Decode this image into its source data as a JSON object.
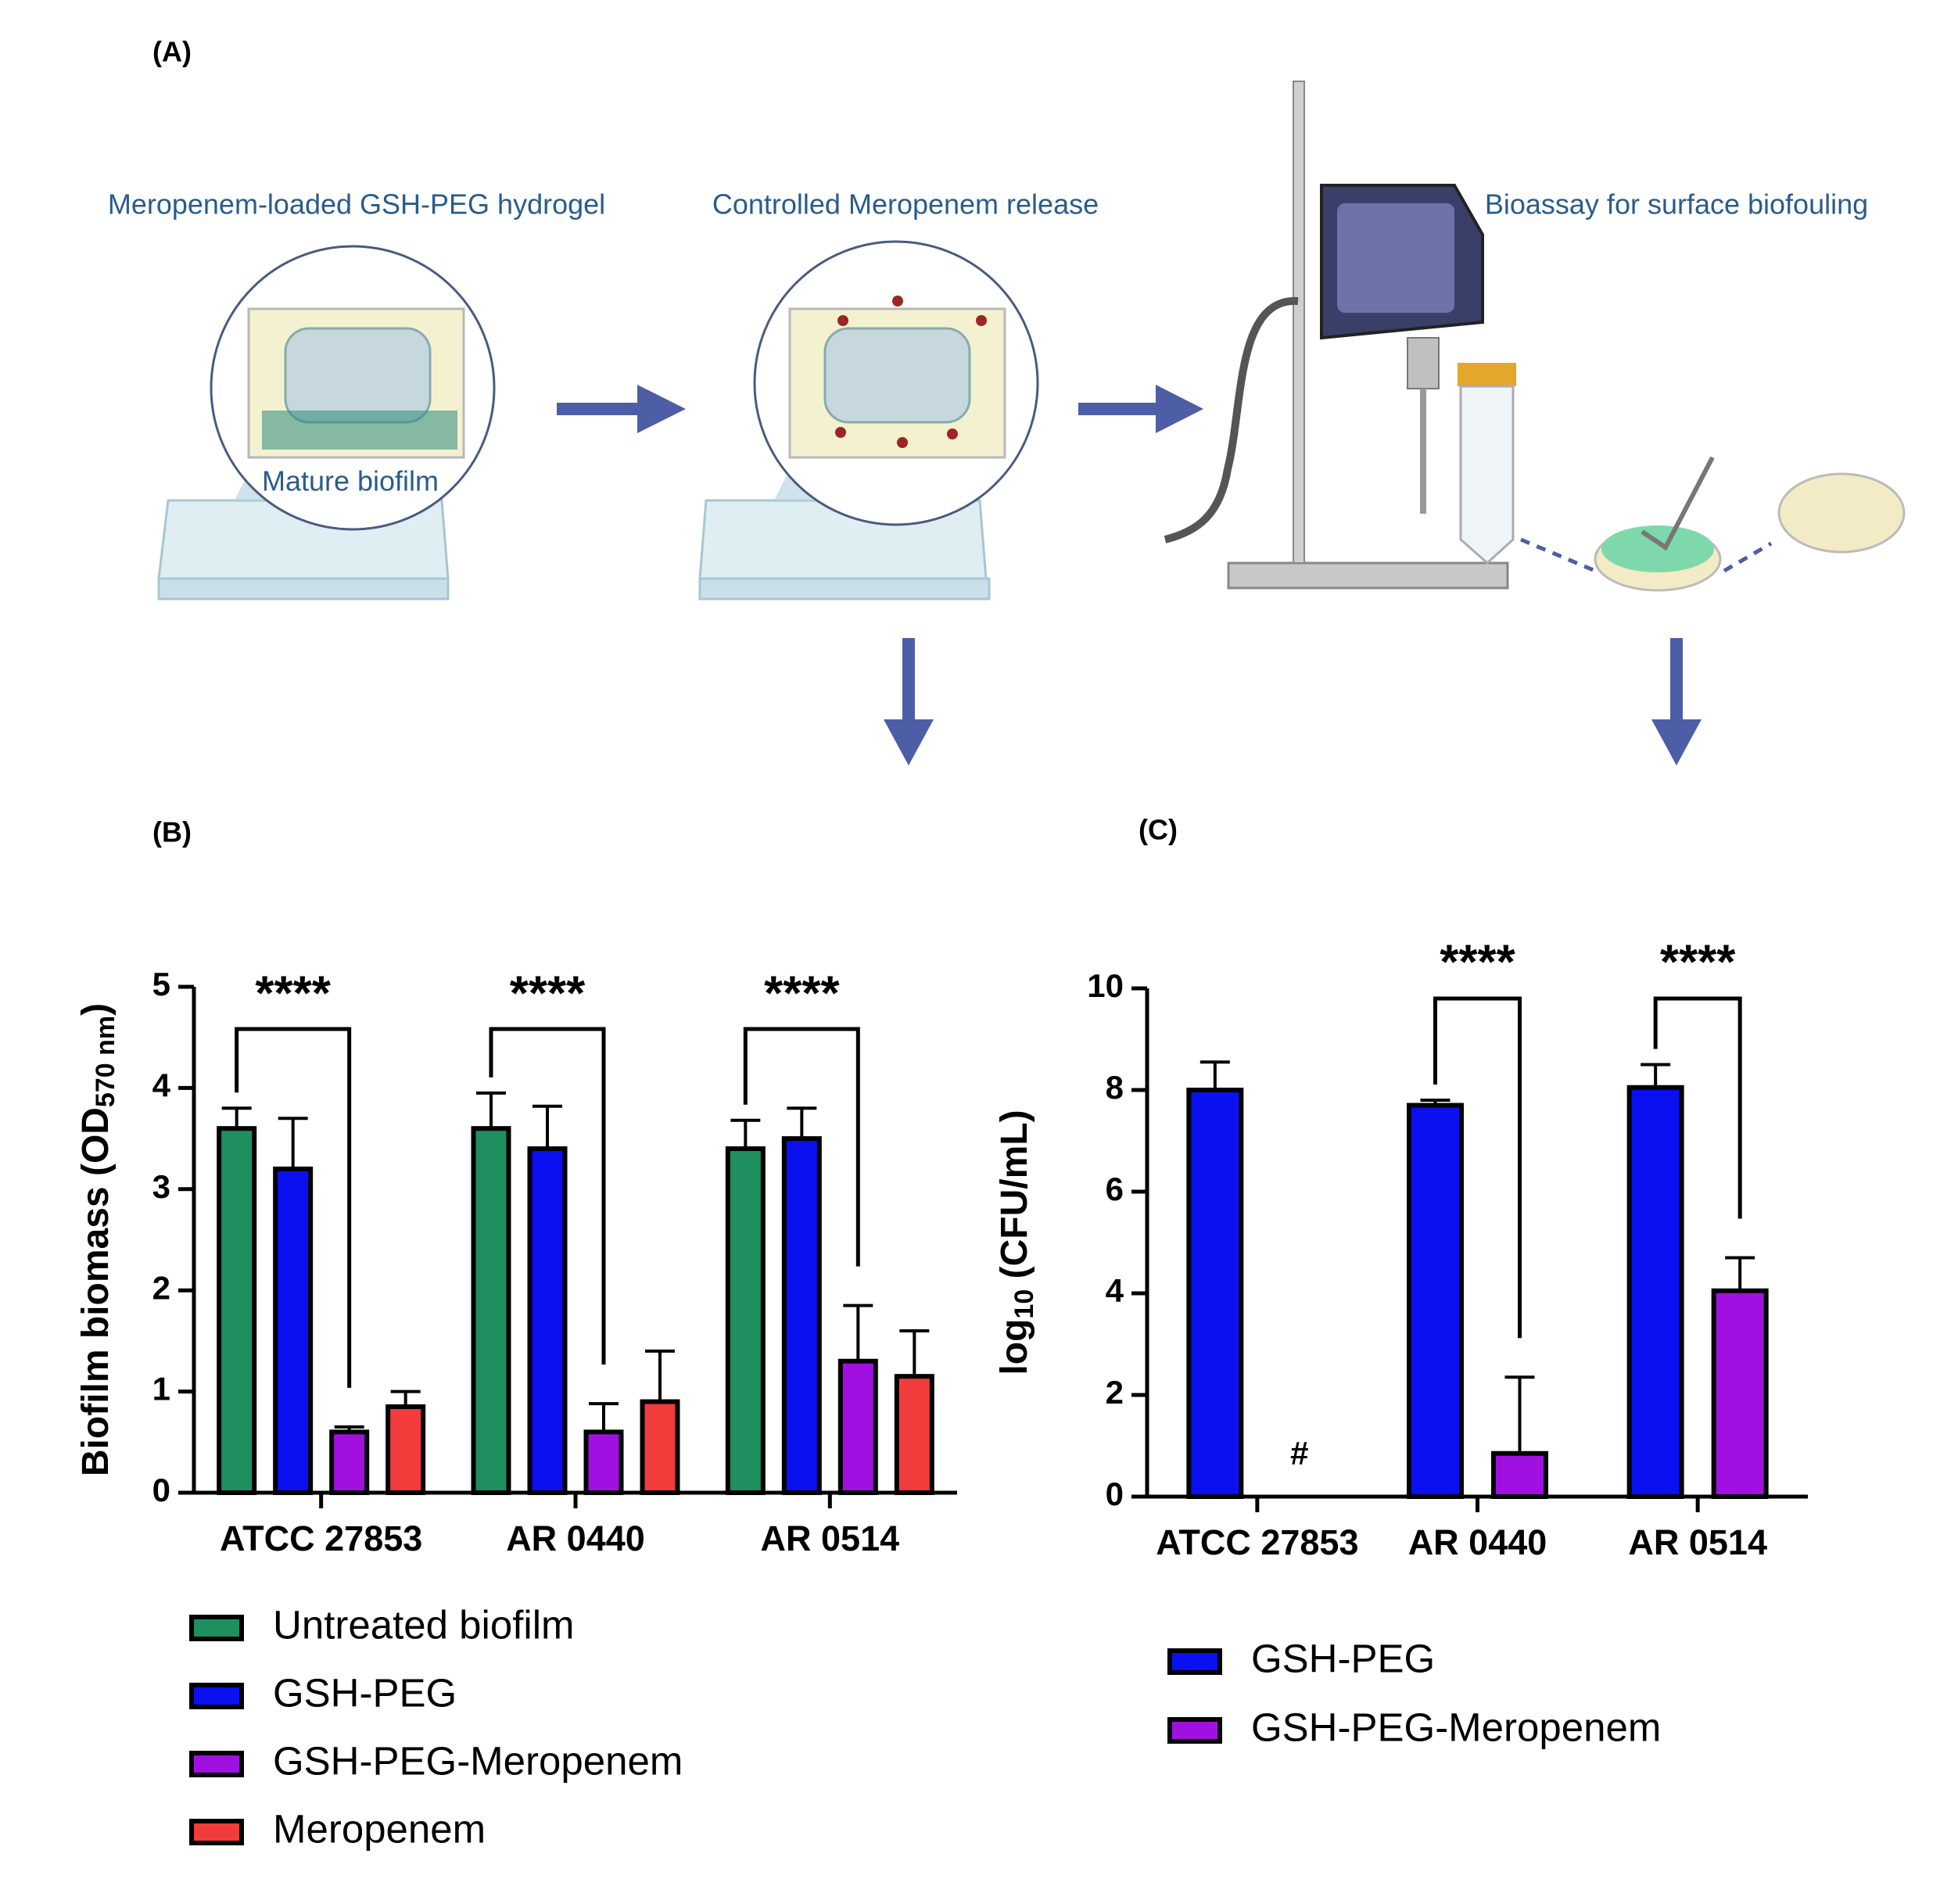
{
  "panel_a": {
    "label": "(A)",
    "steps": [
      "Meropenem-loaded GSH-PEG hydrogel",
      "Controlled Meropenem release",
      "Bioassay for surface biofouling"
    ],
    "inset_label": "Mature biofilm"
  },
  "chart_data": [
    {
      "type": "bar",
      "label": "(B)",
      "y_label": {
        "main": "Biofilm biomass (OD",
        "sub": "570 nm",
        "end": ")"
      },
      "categories": [
        "ATCC 27853",
        "AR 0440",
        "AR 0514"
      ],
      "series": [
        {
          "name": "Untreated biofilm",
          "color": "#1f8f5f",
          "values": [
            3.6,
            3.6,
            3.4
          ],
          "errors": [
            0.2,
            0.35,
            0.28
          ]
        },
        {
          "name": "GSH-PEG",
          "color": "#0a10f0",
          "values": [
            3.2,
            3.4,
            3.5
          ],
          "errors": [
            0.5,
            0.42,
            0.3
          ]
        },
        {
          "name": "GSH-PEG-Meropenem",
          "color": "#a010e0",
          "values": [
            0.6,
            0.6,
            1.3
          ],
          "errors": [
            0.05,
            0.28,
            0.55
          ]
        },
        {
          "name": "Meropenem",
          "color": "#f23c3c",
          "values": [
            0.85,
            0.9,
            1.15
          ],
          "errors": [
            0.15,
            0.5,
            0.45
          ]
        }
      ],
      "ylim": [
        0,
        5
      ],
      "yticks": [
        0,
        1,
        2,
        3,
        4,
        5
      ],
      "annotations": [
        {
          "text": "****",
          "category": 0,
          "from_series": 0,
          "to_series": 2
        },
        {
          "text": "****",
          "category": 1,
          "from_series": 0,
          "to_series": 2
        },
        {
          "text": "****",
          "category": 2,
          "from_series": 0,
          "to_series": 2
        }
      ]
    },
    {
      "type": "bar",
      "label": "(C)",
      "y_label": {
        "main": "log",
        "sub": "10",
        "end": " (CFU/mL)"
      },
      "categories": [
        "ATCC 27853",
        "AR 0440",
        "AR 0514"
      ],
      "series": [
        {
          "name": "GSH-PEG",
          "color": "#0a10f0",
          "values": [
            8.0,
            7.7,
            8.05
          ],
          "errors": [
            0.55,
            0.1,
            0.45
          ]
        },
        {
          "name": "GSH-PEG-Meropenem",
          "color": "#a010e0",
          "values": [
            null,
            0.85,
            4.05
          ],
          "errors": [
            null,
            1.5,
            0.65
          ]
        }
      ],
      "ylim": [
        0,
        10
      ],
      "yticks": [
        0,
        2,
        4,
        6,
        8,
        10
      ],
      "annotations": [
        {
          "text": "#",
          "category": 0,
          "series": 1
        },
        {
          "text": "****",
          "category": 1,
          "from_series": 0,
          "to_series": 1
        },
        {
          "text": "****",
          "category": 2,
          "from_series": 0,
          "to_series": 1
        }
      ]
    }
  ]
}
